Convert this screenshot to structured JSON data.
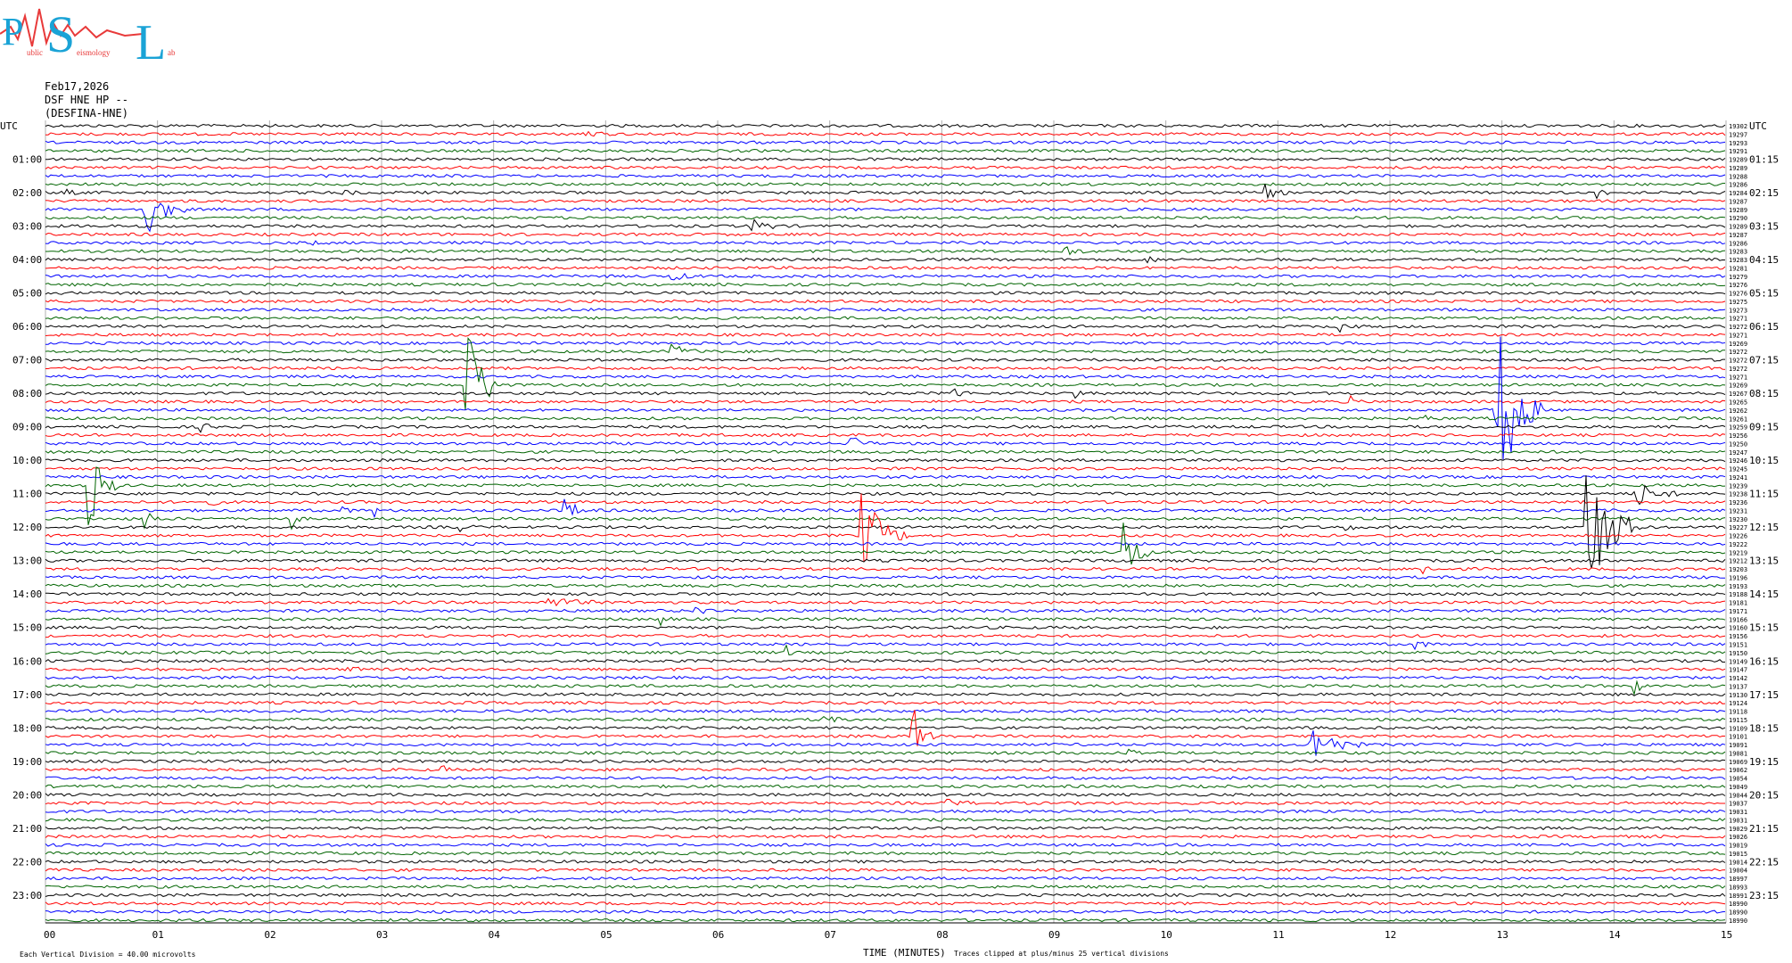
{
  "logo": {
    "letters": [
      "P",
      "S",
      "L"
    ],
    "words": [
      "ublic",
      "eismology",
      "ab"
    ]
  },
  "header": {
    "date": "Feb17,2026",
    "station": "DSF HNE HP --",
    "network": "(DESFINA-HNE)"
  },
  "utc_label": "UTC",
  "footer": {
    "scale_note": "Each Vertical Division =   40.00 microvolts",
    "xlabel": "TIME (MINUTES)",
    "clip_note": "Traces clipped at plus/minus 25 vertical divisions"
  },
  "colors": {
    "trace_cycle": [
      "#000000",
      "#ff0000",
      "#0000ff",
      "#006400"
    ],
    "grid": "#b0b0b0",
    "logo_blue": "#1aa3d6",
    "logo_red": "#e83a3a"
  },
  "chart_data": {
    "type": "line",
    "x_range": [
      0,
      15
    ],
    "x_ticks": [
      "00",
      "01",
      "02",
      "03",
      "04",
      "05",
      "06",
      "07",
      "08",
      "09",
      "10",
      "11",
      "12",
      "13",
      "14",
      "15"
    ],
    "rows": 96,
    "row_minutes": 15,
    "left_labels": [
      "01:00",
      "02:00",
      "03:00",
      "04:00",
      "05:00",
      "06:00",
      "07:00",
      "08:00",
      "09:00",
      "10:00",
      "11:00",
      "12:00",
      "13:00",
      "14:00",
      "15:00",
      "16:00",
      "17:00",
      "18:00",
      "19:00",
      "20:00",
      "21:00",
      "22:00",
      "23:00"
    ],
    "right_labels": [
      "01:15",
      "02:15",
      "03:15",
      "04:15",
      "05:15",
      "06:15",
      "07:15",
      "08:15",
      "09:15",
      "10:15",
      "11:15",
      "12:15",
      "13:15",
      "14:15",
      "15:15",
      "16:15",
      "17:15",
      "18:15",
      "19:15",
      "20:15",
      "21:15",
      "22:15",
      "23:15"
    ],
    "row_counts": [
      "19302",
      "19297",
      "19293",
      "19291",
      "19289",
      "19289",
      "19288",
      "19286",
      "19284",
      "19287",
      "19289",
      "19290",
      "19289",
      "19287",
      "19286",
      "19283",
      "19283",
      "19281",
      "19279",
      "19276",
      "19276",
      "19275",
      "19273",
      "19271",
      "19272",
      "19271",
      "19269",
      "19272",
      "19272",
      "19272",
      "19271",
      "19269",
      "19267",
      "19265",
      "19262",
      "19261",
      "19259",
      "19256",
      "19250",
      "19247",
      "19246",
      "19245",
      "19241",
      "19239",
      "19238",
      "19236",
      "19231",
      "19230",
      "19227",
      "19226",
      "19222",
      "19219",
      "19212",
      "19203",
      "19196",
      "19193",
      "19188",
      "19181",
      "19171",
      "19166",
      "19160",
      "19156",
      "19151",
      "19150",
      "19149",
      "19147",
      "19142",
      "19137",
      "19130",
      "19124",
      "19118",
      "19115",
      "19109",
      "19101",
      "19091",
      "19081",
      "19069",
      "19062",
      "19054",
      "19049",
      "19044",
      "19037",
      "19031",
      "19031",
      "19029",
      "19026",
      "19019",
      "19015",
      "19014",
      "19004",
      "18997",
      "18993",
      "18991",
      "18990",
      "18990",
      "18990"
    ],
    "events": [
      {
        "row": 1,
        "x": 4.8,
        "amp": 5,
        "len": 0.25
      },
      {
        "row": 8,
        "x": 0.2,
        "amp": 3,
        "len": 0.12
      },
      {
        "row": 8,
        "x": 2.65,
        "amp": 4,
        "len": 0.15
      },
      {
        "row": 8,
        "x": 10.9,
        "amp": 8,
        "len": 0.2
      },
      {
        "row": 8,
        "x": 13.85,
        "amp": 5,
        "len": 0.15
      },
      {
        "row": 10,
        "x": 0.9,
        "amp": 30,
        "len": 0.35
      },
      {
        "row": 12,
        "x": 6.3,
        "amp": 9,
        "len": 0.3
      },
      {
        "row": 14,
        "x": 2.35,
        "amp": 3,
        "len": 0.15
      },
      {
        "row": 15,
        "x": 3.15,
        "amp": 7,
        "len": 0.08
      },
      {
        "row": 15,
        "x": 9.1,
        "amp": 6,
        "len": 0.25
      },
      {
        "row": 16,
        "x": 9.85,
        "amp": 5,
        "len": 0.1
      },
      {
        "row": 18,
        "x": 5.6,
        "amp": 4,
        "len": 0.3
      },
      {
        "row": 24,
        "x": 11.55,
        "amp": 5,
        "len": 0.2
      },
      {
        "row": 27,
        "x": 5.6,
        "amp": 8,
        "len": 0.3
      },
      {
        "row": 31,
        "x": 3.75,
        "amp": 80,
        "len": 0.35
      },
      {
        "row": 32,
        "x": 8.1,
        "amp": 10,
        "len": 0.15
      },
      {
        "row": 32,
        "x": 9.2,
        "amp": 7,
        "len": 0.12
      },
      {
        "row": 33,
        "x": 11.65,
        "amp": 5,
        "len": 0.1
      },
      {
        "row": 36,
        "x": 1.4,
        "amp": 5,
        "len": 0.15
      },
      {
        "row": 34,
        "x": 12.95,
        "amp": 125,
        "len": 0.4
      },
      {
        "row": 34,
        "x": 13.1,
        "amp": 10,
        "len": 0.25
      },
      {
        "row": 35,
        "x": 12.3,
        "amp": 6,
        "len": 0.15
      },
      {
        "row": 37,
        "x": 6.0,
        "amp": 5,
        "len": 0.1
      },
      {
        "row": 38,
        "x": 7.2,
        "amp": 9,
        "len": 0.2
      },
      {
        "row": 43,
        "x": 0.4,
        "amp": 50,
        "len": 0.25
      },
      {
        "row": 44,
        "x": 14.2,
        "amp": 15,
        "len": 0.4
      },
      {
        "row": 45,
        "x": 1.45,
        "amp": 4,
        "len": 0.2
      },
      {
        "row": 46,
        "x": 2.65,
        "amp": 10,
        "len": 0.08
      },
      {
        "row": 46,
        "x": 2.95,
        "amp": 6,
        "len": 0.05
      },
      {
        "row": 46,
        "x": 4.65,
        "amp": 12,
        "len": 0.25
      },
      {
        "row": 47,
        "x": 0.9,
        "amp": 12,
        "len": 0.15
      },
      {
        "row": 47,
        "x": 2.2,
        "amp": 12,
        "len": 0.1
      },
      {
        "row": 48,
        "x": 3.7,
        "amp": 6,
        "len": 0.15
      },
      {
        "row": 48,
        "x": 11.6,
        "amp": 5,
        "len": 0.15
      },
      {
        "row": 48,
        "x": 13.75,
        "amp": 90,
        "len": 0.5
      },
      {
        "row": 49,
        "x": 7.3,
        "amp": 50,
        "len": 0.4
      },
      {
        "row": 51,
        "x": 9.62,
        "amp": 45,
        "len": 0.25
      },
      {
        "row": 53,
        "x": 12.3,
        "amp": 6,
        "len": 0.15
      },
      {
        "row": 57,
        "x": 4.5,
        "amp": 6,
        "len": 0.5
      },
      {
        "row": 58,
        "x": 5.8,
        "amp": 6,
        "len": 0.2
      },
      {
        "row": 59,
        "x": 5.5,
        "amp": 7,
        "len": 0.1
      },
      {
        "row": 62,
        "x": 12.2,
        "amp": 12,
        "len": 0.15
      },
      {
        "row": 63,
        "x": 6.6,
        "amp": 10,
        "len": 0.1
      },
      {
        "row": 65,
        "x": 2.7,
        "amp": 8,
        "len": 0.12
      },
      {
        "row": 67,
        "x": 14.2,
        "amp": 10,
        "len": 0.08
      },
      {
        "row": 71,
        "x": 6.95,
        "amp": 8,
        "len": 0.15
      },
      {
        "row": 73,
        "x": 7.75,
        "amp": 35,
        "len": 0.2
      },
      {
        "row": 74,
        "x": 11.3,
        "amp": 25,
        "len": 0.45
      },
      {
        "row": 75,
        "x": 9.65,
        "amp": 6,
        "len": 0.2
      },
      {
        "row": 77,
        "x": 3.55,
        "amp": 4,
        "len": 0.1
      },
      {
        "row": 81,
        "x": 8.05,
        "amp": 4,
        "len": 0.3
      }
    ]
  }
}
